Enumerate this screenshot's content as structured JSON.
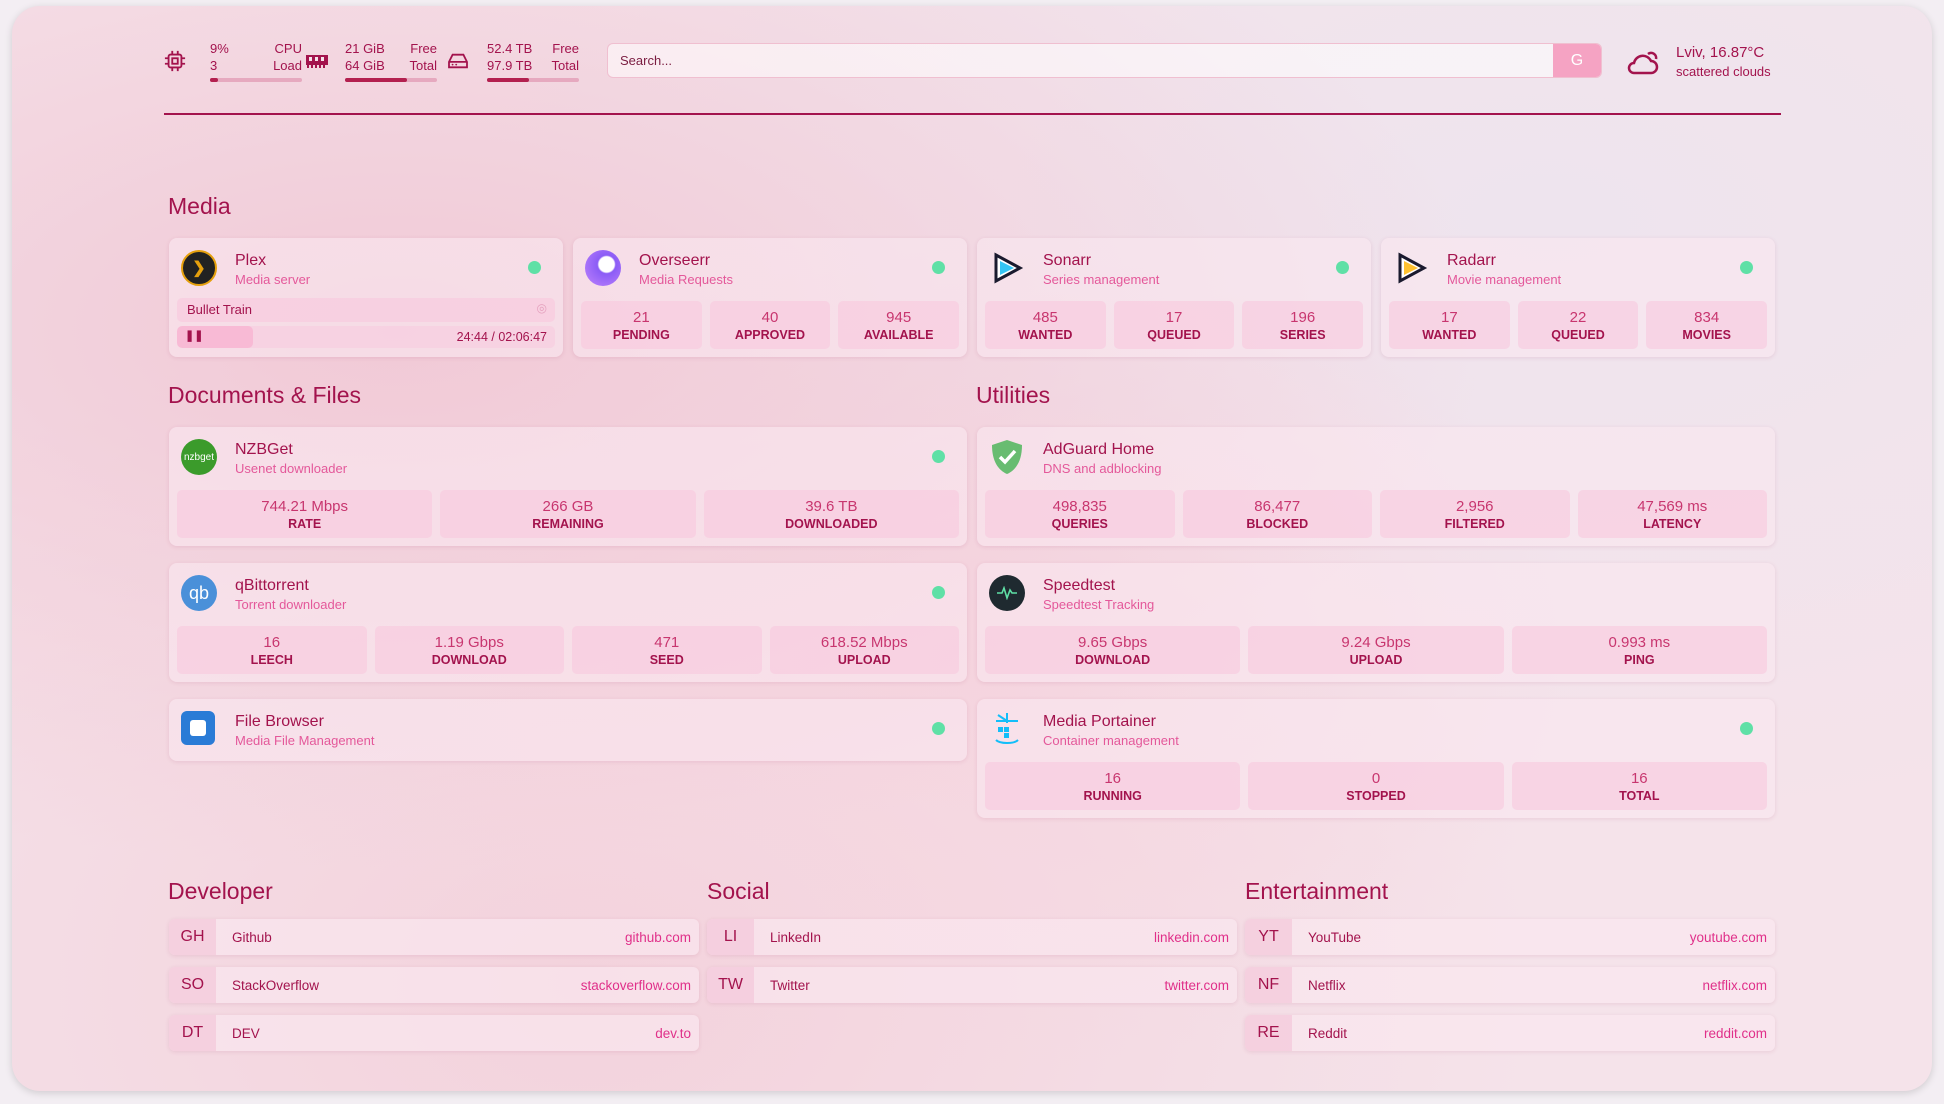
{
  "header": {
    "cpu": {
      "icon": "cpu-icon",
      "value": "9%",
      "sub": "3",
      "label1": "CPU",
      "label2": "Load",
      "usage_percent": 9
    },
    "memory": {
      "icon": "memory-icon",
      "value": "21 GiB",
      "sub": "64 GiB",
      "label1": "Free",
      "label2": "Total",
      "usage_percent": 67
    },
    "disk": {
      "icon": "disk-icon",
      "value": "52.4 TB",
      "sub": "97.9 TB",
      "label1": "Free",
      "label2": "Total",
      "usage_percent": 46
    },
    "search": {
      "placeholder": "Search...",
      "engine_label": "G"
    },
    "weather": {
      "icon": "cloud-icon",
      "location_temp": "Lviv, 16.87°C",
      "condition": "scattered clouds"
    }
  },
  "colors": {
    "accent": "#a3134d",
    "subtitle": "#e4589a",
    "status_ok": "#5fe0a6"
  },
  "media": {
    "title": "Media",
    "plex": {
      "name": "Plex",
      "desc": "Media server",
      "now_playing": "Bullet Train",
      "time": "24:44 / 02:06:47",
      "progress_percent": 20
    },
    "overseerr": {
      "name": "Overseerr",
      "desc": "Media Requests",
      "stats": [
        {
          "v": "21",
          "k": "PENDING"
        },
        {
          "v": "40",
          "k": "APPROVED"
        },
        {
          "v": "945",
          "k": "AVAILABLE"
        }
      ]
    },
    "sonarr": {
      "name": "Sonarr",
      "desc": "Series management",
      "stats": [
        {
          "v": "485",
          "k": "WANTED"
        },
        {
          "v": "17",
          "k": "QUEUED"
        },
        {
          "v": "196",
          "k": "SERIES"
        }
      ]
    },
    "radarr": {
      "name": "Radarr",
      "desc": "Movie management",
      "stats": [
        {
          "v": "17",
          "k": "WANTED"
        },
        {
          "v": "22",
          "k": "QUEUED"
        },
        {
          "v": "834",
          "k": "MOVIES"
        }
      ]
    }
  },
  "docs": {
    "title": "Documents & Files",
    "nzbget": {
      "name": "NZBGet",
      "desc": "Usenet downloader",
      "logo": "nzbget",
      "stats": [
        {
          "v": "744.21 Mbps",
          "k": "RATE"
        },
        {
          "v": "266 GB",
          "k": "REMAINING"
        },
        {
          "v": "39.6 TB",
          "k": "DOWNLOADED"
        }
      ]
    },
    "qbit": {
      "name": "qBittorrent",
      "desc": "Torrent downloader",
      "logo": "qb",
      "stats": [
        {
          "v": "16",
          "k": "LEECH"
        },
        {
          "v": "1.19 Gbps",
          "k": "DOWNLOAD"
        },
        {
          "v": "471",
          "k": "SEED"
        },
        {
          "v": "618.52 Mbps",
          "k": "UPLOAD"
        }
      ]
    },
    "filebrowser": {
      "name": "File Browser",
      "desc": "Media File Management"
    }
  },
  "utilities": {
    "title": "Utilities",
    "adguard": {
      "name": "AdGuard Home",
      "desc": "DNS and adblocking",
      "stats": [
        {
          "v": "498,835",
          "k": "QUERIES"
        },
        {
          "v": "86,477",
          "k": "BLOCKED"
        },
        {
          "v": "2,956",
          "k": "FILTERED"
        },
        {
          "v": "47,569 ms",
          "k": "LATENCY"
        }
      ]
    },
    "speedtest": {
      "name": "Speedtest",
      "desc": "Speedtest Tracking",
      "stats": [
        {
          "v": "9.65 Gbps",
          "k": "DOWNLOAD"
        },
        {
          "v": "9.24 Gbps",
          "k": "UPLOAD"
        },
        {
          "v": "0.993 ms",
          "k": "PING"
        }
      ]
    },
    "portainer": {
      "name": "Media Portainer",
      "desc": "Container management",
      "stats": [
        {
          "v": "16",
          "k": "RUNNING"
        },
        {
          "v": "0",
          "k": "STOPPED"
        },
        {
          "v": "16",
          "k": "TOTAL"
        }
      ]
    }
  },
  "bookmarks": [
    {
      "title": "Developer",
      "items": [
        {
          "abbr": "GH",
          "name": "Github",
          "url": "github.com"
        },
        {
          "abbr": "SO",
          "name": "StackOverflow",
          "url": "stackoverflow.com"
        },
        {
          "abbr": "DT",
          "name": "DEV",
          "url": "dev.to"
        }
      ]
    },
    {
      "title": "Social",
      "items": [
        {
          "abbr": "LI",
          "name": "LinkedIn",
          "url": "linkedin.com"
        },
        {
          "abbr": "TW",
          "name": "Twitter",
          "url": "twitter.com"
        }
      ]
    },
    {
      "title": "Entertainment",
      "items": [
        {
          "abbr": "YT",
          "name": "YouTube",
          "url": "youtube.com"
        },
        {
          "abbr": "NF",
          "name": "Netflix",
          "url": "netflix.com"
        },
        {
          "abbr": "RE",
          "name": "Reddit",
          "url": "reddit.com"
        }
      ]
    }
  ]
}
